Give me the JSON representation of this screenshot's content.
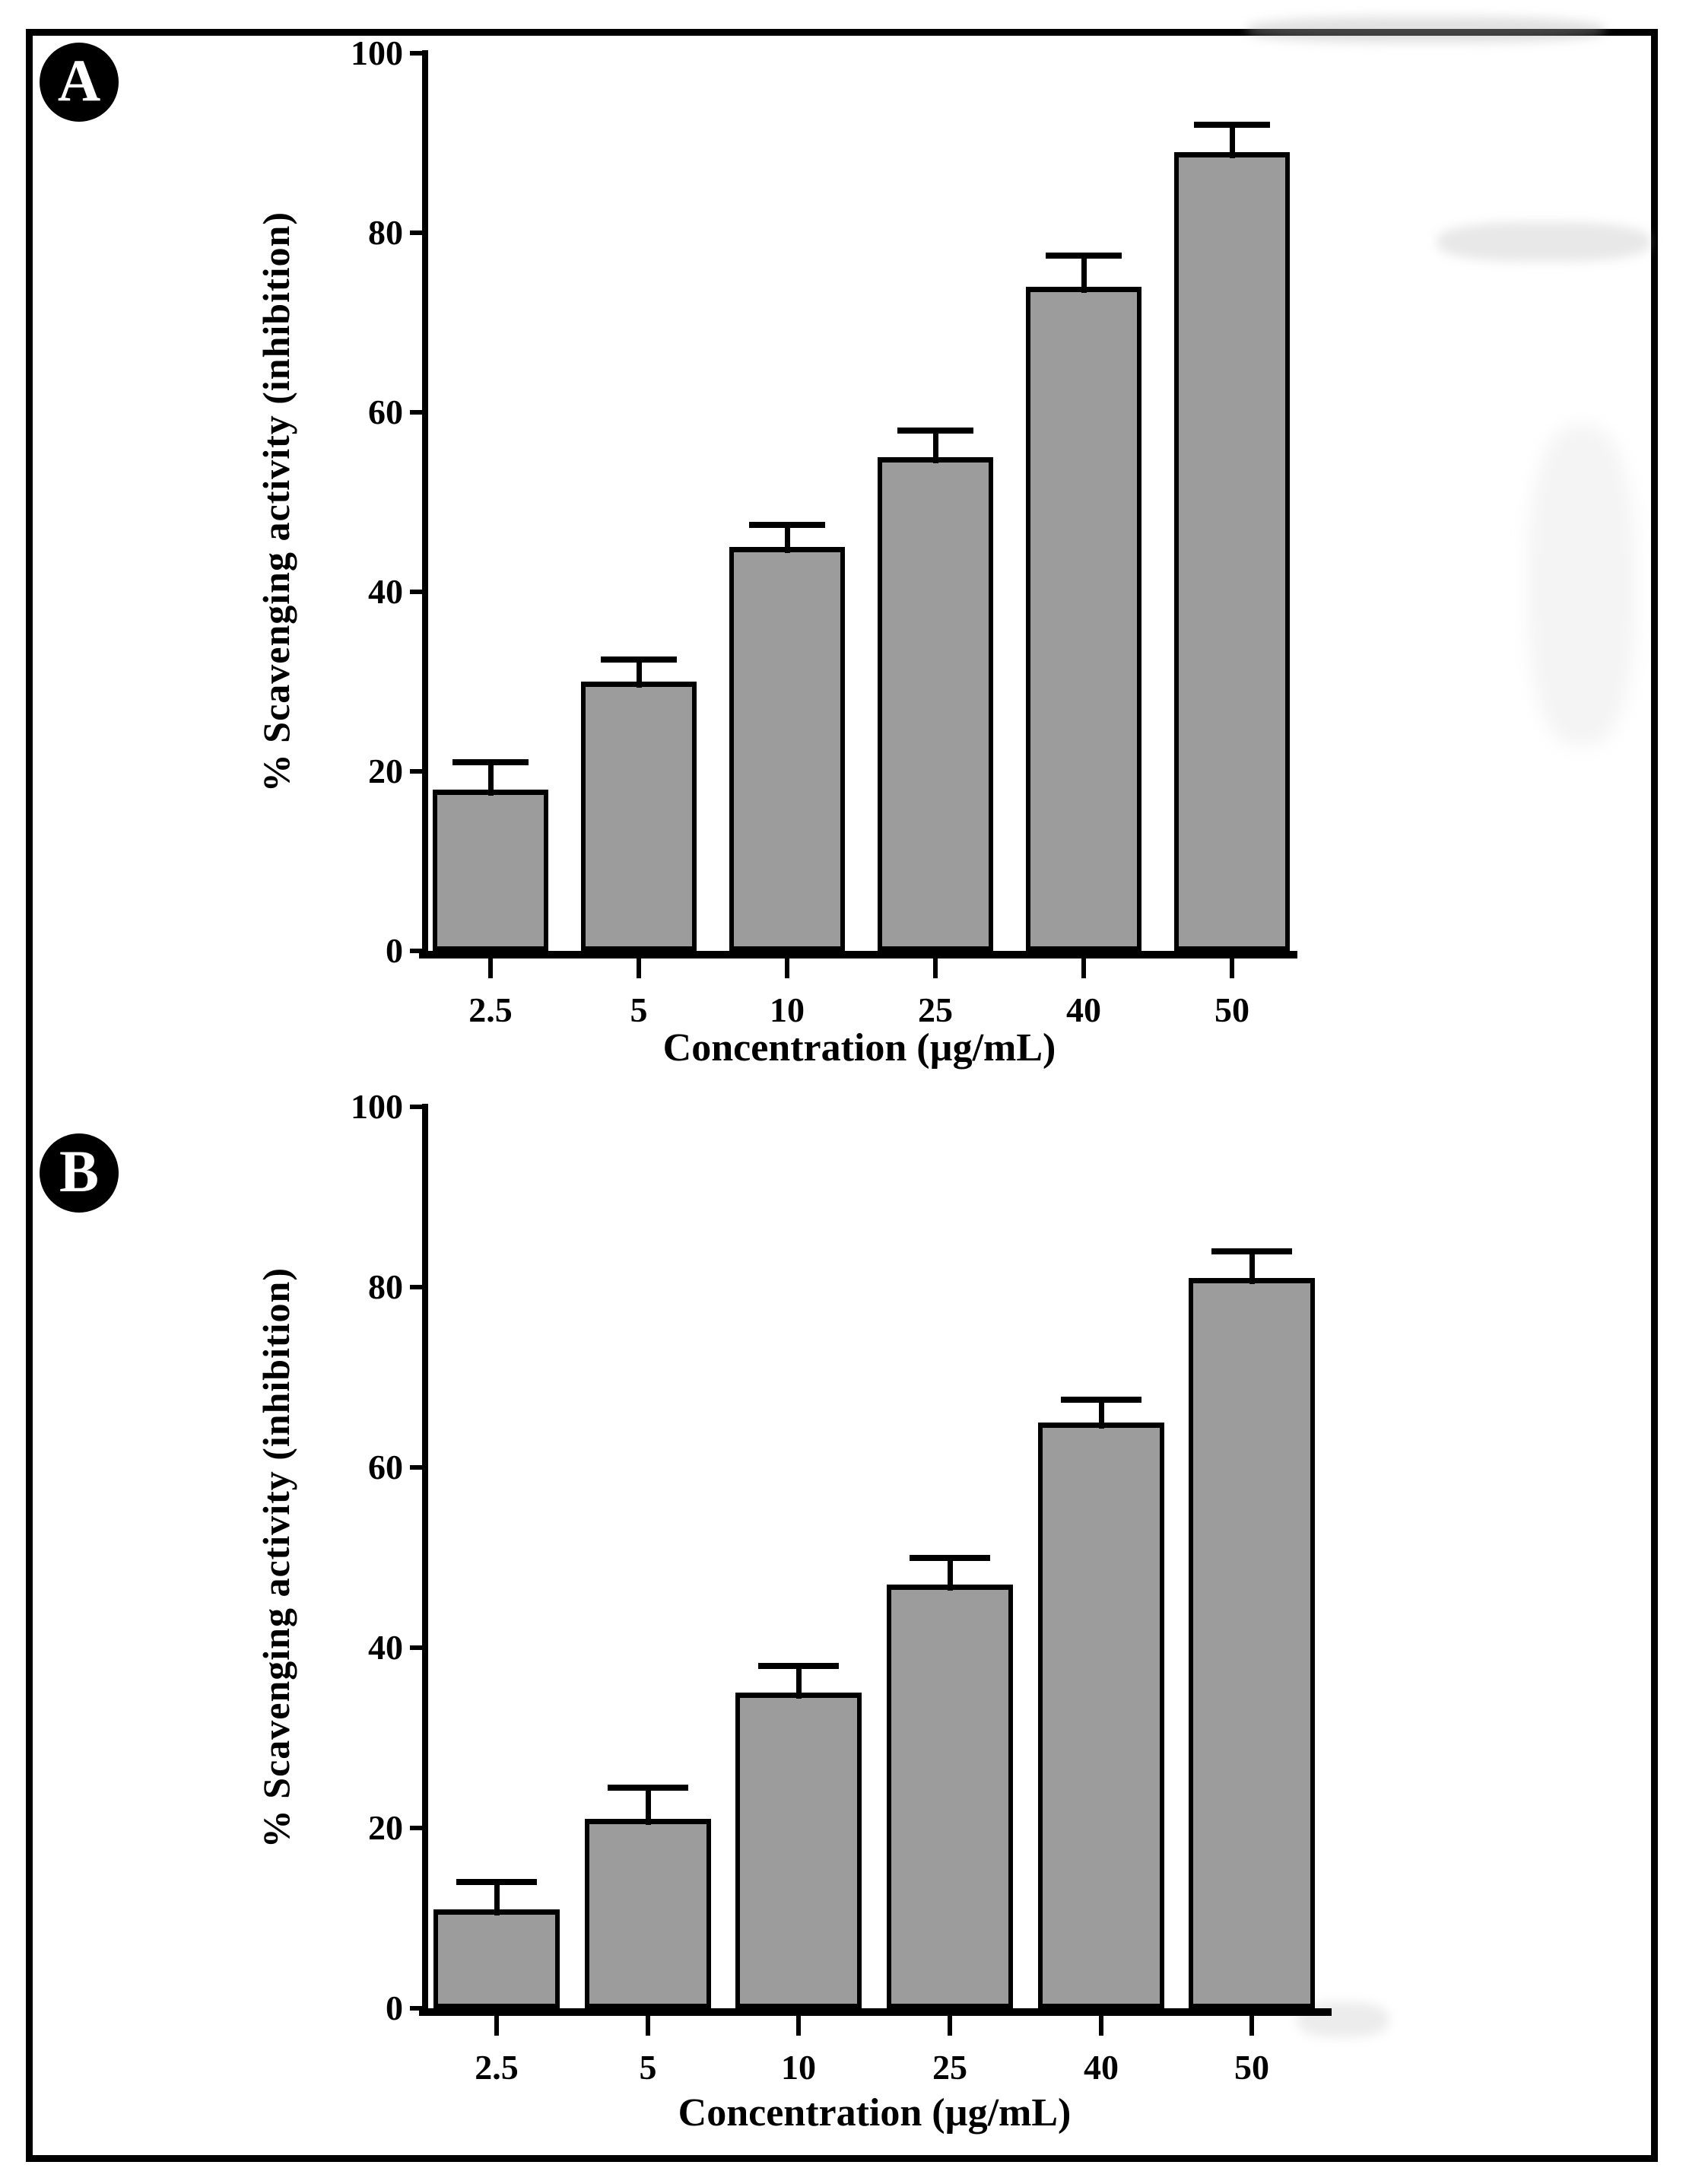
{
  "figure": {
    "background": "#ffffff",
    "frame_color": "#000000",
    "bar_fill": "#9c9c9c",
    "bar_border": "#000000",
    "text_color": "#000000"
  },
  "panels": {
    "a_label": "A",
    "b_label": "B"
  },
  "chart_data": [
    {
      "id": "A",
      "type": "bar",
      "panel_label": "A",
      "xlabel": "Concentration (µg/mL)",
      "ylabel": "% Scavenging activity (inhibition)",
      "categories": [
        "2.5",
        "5",
        "10",
        "25",
        "40",
        "50"
      ],
      "values": [
        18,
        30,
        45,
        55,
        74,
        89
      ],
      "errors_plus": [
        3,
        2.5,
        2.5,
        3,
        3.5,
        3
      ],
      "ylim": [
        0,
        100
      ],
      "yticks": [
        0,
        20,
        40,
        60,
        80,
        100
      ],
      "grid": false,
      "legend": null,
      "bar_color": "#9c9c9c"
    },
    {
      "id": "B",
      "type": "bar",
      "panel_label": "B",
      "xlabel": "Concentration (µg/mL)",
      "ylabel": "% Scavenging activity (inhibition)",
      "categories": [
        "2.5",
        "5",
        "10",
        "25",
        "40",
        "50"
      ],
      "values": [
        11,
        21,
        35,
        47,
        65,
        81
      ],
      "errors_plus": [
        3,
        3.5,
        3,
        3,
        2.5,
        3
      ],
      "ylim": [
        0,
        100
      ],
      "yticks": [
        0,
        20,
        40,
        60,
        80,
        100
      ],
      "grid": false,
      "legend": null,
      "bar_color": "#9c9c9c"
    }
  ]
}
